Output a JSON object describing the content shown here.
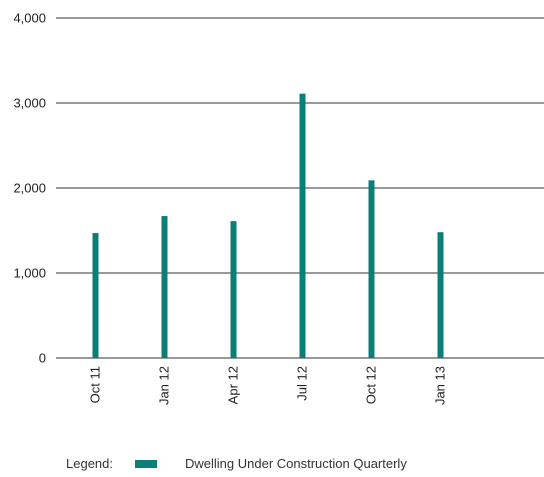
{
  "chart_data": {
    "type": "bar",
    "categories": [
      "Oct 11",
      "Jan 12",
      "Apr 12",
      "Jul 12",
      "Oct 12",
      "Jan 13"
    ],
    "series": [
      {
        "name": "Dwelling Under Construction Quarterly",
        "values": [
          1470,
          1670,
          1610,
          3110,
          2090,
          1480
        ]
      }
    ],
    "ylim": [
      0,
      4000
    ],
    "yticks": [
      "0",
      "1,000",
      "2,000",
      "3,000",
      "4,000"
    ],
    "ytick_values": [
      0,
      1000,
      2000,
      3000,
      4000
    ],
    "grid": true,
    "bar_color": "#0a7f78",
    "legend_position": "bottom-left"
  },
  "legend": {
    "label": "Legend:",
    "series_name": "Dwelling Under Construction Quarterly",
    "color": "#0a7f78"
  }
}
